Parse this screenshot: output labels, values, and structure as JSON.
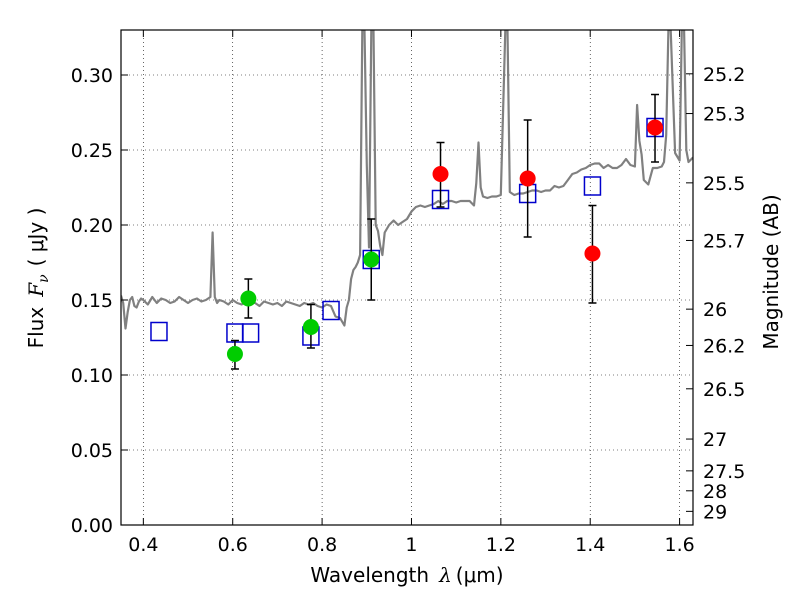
{
  "chart_data": {
    "type": "scatter",
    "xlabel_prefix": "Wavelength",
    "xlabel_symbol": "λ",
    "xlabel_unit": "(μm)",
    "ylabel_prefix": "Flux",
    "ylabel_symbol": "F",
    "ylabel_sub": "ν",
    "ylabel_unit": "( μJy )",
    "y2label": "Magnitude (AB)",
    "xlim": [
      0.35,
      1.63
    ],
    "ylim": [
      0.0,
      0.33
    ],
    "grid": true,
    "xticks": [
      0.4,
      0.6,
      0.8,
      1.0,
      1.2,
      1.4,
      1.6
    ],
    "xtick_labels": [
      "0.4",
      "0.6",
      "0.8",
      "1",
      "1.2",
      "1.4",
      "1.6"
    ],
    "yticks": [
      0.0,
      0.05,
      0.1,
      0.15,
      0.2,
      0.25,
      0.3
    ],
    "ytick_labels": [
      "0.00",
      "0.05",
      "0.10",
      "0.15",
      "0.20",
      "0.25",
      "0.30"
    ],
    "y2ticks": [
      {
        "label": "25.2",
        "flux": 0.3008
      },
      {
        "label": "25.3",
        "flux": 0.2743
      },
      {
        "label": "25.5",
        "flux": 0.2281
      },
      {
        "label": "25.7",
        "flux": 0.1897
      },
      {
        "label": "26",
        "flux": 0.1439
      },
      {
        "label": "26.2",
        "flux": 0.1197
      },
      {
        "label": "26.5",
        "flux": 0.0908
      },
      {
        "label": "27",
        "flux": 0.0573
      },
      {
        "label": "27.5",
        "flux": 0.0361
      },
      {
        "label": "28",
        "flux": 0.0228
      },
      {
        "label": "29",
        "flux": 0.0091
      }
    ],
    "series": [
      {
        "kind": "line",
        "color": "#808080",
        "x": [
          0.35,
          0.355,
          0.36,
          0.365,
          0.37,
          0.375,
          0.38,
          0.385,
          0.39,
          0.395,
          0.4,
          0.41,
          0.42,
          0.43,
          0.44,
          0.45,
          0.46,
          0.47,
          0.48,
          0.49,
          0.5,
          0.51,
          0.52,
          0.53,
          0.54,
          0.55,
          0.555,
          0.56,
          0.565,
          0.57,
          0.58,
          0.59,
          0.6,
          0.61,
          0.62,
          0.63,
          0.64,
          0.65,
          0.66,
          0.67,
          0.68,
          0.69,
          0.7,
          0.71,
          0.72,
          0.73,
          0.74,
          0.75,
          0.76,
          0.77,
          0.78,
          0.79,
          0.8,
          0.81,
          0.82,
          0.83,
          0.84,
          0.85,
          0.855,
          0.86,
          0.865,
          0.87,
          0.875,
          0.88,
          0.885,
          0.89,
          0.895,
          0.9,
          0.905,
          0.91,
          0.915,
          0.92,
          0.925,
          0.93,
          0.935,
          0.94,
          0.95,
          0.96,
          0.97,
          0.98,
          0.99,
          1.0,
          1.01,
          1.02,
          1.03,
          1.04,
          1.05,
          1.06,
          1.07,
          1.08,
          1.09,
          1.1,
          1.11,
          1.12,
          1.13,
          1.14,
          1.145,
          1.15,
          1.155,
          1.16,
          1.17,
          1.18,
          1.19,
          1.2,
          1.21,
          1.215,
          1.22,
          1.225,
          1.23,
          1.24,
          1.25,
          1.26,
          1.27,
          1.28,
          1.29,
          1.3,
          1.31,
          1.32,
          1.33,
          1.34,
          1.35,
          1.36,
          1.37,
          1.38,
          1.39,
          1.4,
          1.41,
          1.42,
          1.43,
          1.44,
          1.45,
          1.46,
          1.47,
          1.48,
          1.49,
          1.5,
          1.505,
          1.51,
          1.515,
          1.52,
          1.53,
          1.54,
          1.55,
          1.56,
          1.565,
          1.57,
          1.575,
          1.58,
          1.59,
          1.6,
          1.605,
          1.61,
          1.615,
          1.62,
          1.63
        ],
        "y": [
          0.153,
          0.148,
          0.131,
          0.142,
          0.15,
          0.152,
          0.146,
          0.145,
          0.149,
          0.151,
          0.15,
          0.147,
          0.152,
          0.148,
          0.151,
          0.15,
          0.148,
          0.149,
          0.152,
          0.15,
          0.148,
          0.15,
          0.151,
          0.149,
          0.15,
          0.152,
          0.195,
          0.152,
          0.148,
          0.15,
          0.149,
          0.147,
          0.15,
          0.148,
          0.147,
          0.149,
          0.15,
          0.148,
          0.146,
          0.149,
          0.148,
          0.147,
          0.148,
          0.146,
          0.149,
          0.148,
          0.147,
          0.146,
          0.148,
          0.147,
          0.148,
          0.146,
          0.145,
          0.147,
          0.146,
          0.139,
          0.138,
          0.133,
          0.145,
          0.15,
          0.164,
          0.17,
          0.172,
          0.175,
          0.18,
          0.33,
          0.33,
          0.24,
          0.185,
          0.33,
          0.33,
          0.2,
          0.196,
          0.186,
          0.18,
          0.195,
          0.2,
          0.203,
          0.2,
          0.202,
          0.204,
          0.209,
          0.212,
          0.213,
          0.212,
          0.213,
          0.214,
          0.216,
          0.214,
          0.216,
          0.216,
          0.215,
          0.216,
          0.216,
          0.216,
          0.213,
          0.228,
          0.255,
          0.225,
          0.219,
          0.218,
          0.219,
          0.219,
          0.22,
          0.33,
          0.33,
          0.222,
          0.221,
          0.22,
          0.221,
          0.221,
          0.222,
          0.223,
          0.223,
          0.222,
          0.223,
          0.223,
          0.226,
          0.225,
          0.226,
          0.23,
          0.234,
          0.235,
          0.237,
          0.238,
          0.24,
          0.241,
          0.241,
          0.238,
          0.24,
          0.238,
          0.238,
          0.24,
          0.244,
          0.24,
          0.239,
          0.28,
          0.256,
          0.247,
          0.23,
          0.227,
          0.238,
          0.238,
          0.239,
          0.242,
          0.26,
          0.33,
          0.33,
          0.248,
          0.243,
          0.33,
          0.33,
          0.25,
          0.242,
          0.245
        ]
      },
      {
        "kind": "squares",
        "color": "#0000cc",
        "x": [
          0.435,
          0.605,
          0.64,
          0.775,
          0.82,
          0.91,
          1.065,
          1.26,
          1.405,
          1.545
        ],
        "y": [
          0.129,
          0.128,
          0.128,
          0.126,
          0.143,
          0.177,
          0.217,
          0.221,
          0.226,
          0.265
        ]
      },
      {
        "kind": "dots",
        "color": "#00cc00",
        "x": [
          0.605,
          0.635,
          0.775,
          0.91
        ],
        "y": [
          0.114,
          0.151,
          0.132,
          0.177
        ],
        "err_upper": [
          0.123,
          0.164,
          0.147,
          0.204
        ],
        "err_lower": [
          0.104,
          0.138,
          0.118,
          0.15
        ]
      },
      {
        "kind": "dots",
        "color": "#ff0000",
        "x": [
          1.065,
          1.26,
          1.405,
          1.545
        ],
        "y": [
          0.234,
          0.231,
          0.181,
          0.265
        ],
        "err_upper": [
          0.255,
          0.27,
          0.213,
          0.287
        ],
        "err_lower": [
          0.212,
          0.192,
          0.148,
          0.242
        ]
      }
    ]
  }
}
